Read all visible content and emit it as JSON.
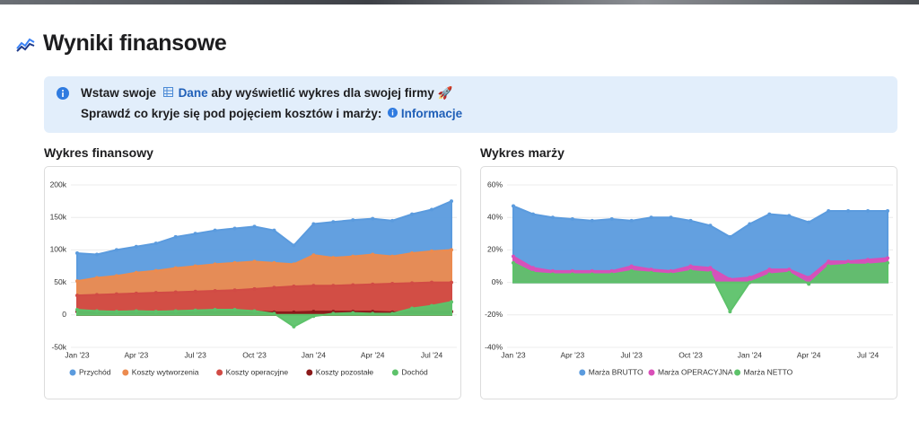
{
  "header": {
    "title": "Wyniki finansowe"
  },
  "banner": {
    "line1": {
      "before": "Wstaw swoje",
      "link": "Dane",
      "after": "aby wyświetlić wykres dla swojej firmy 🚀"
    },
    "line2": {
      "text": "Sprawdź co kryje się pod pojęciem kosztów i marży:",
      "link": "Informacje"
    }
  },
  "chart_data": [
    {
      "type": "area",
      "title": "Wykres finansowy",
      "categories": [
        "Jan '23",
        null,
        null,
        "Apr '23",
        null,
        null,
        "Jul '23",
        null,
        null,
        "Oct '23",
        null,
        null,
        "Jan '24",
        null,
        null,
        "Apr '24",
        null,
        null,
        "Jul '24",
        null
      ],
      "series": [
        {
          "name": "Przychód",
          "color": "#5b9bde",
          "values": [
            95000,
            93000,
            100000,
            105000,
            110000,
            120000,
            125000,
            130000,
            133000,
            136000,
            130000,
            107000,
            140000,
            143000,
            146000,
            148000,
            145000,
            155000,
            162000,
            175000
          ]
        },
        {
          "name": "Koszty wytworzenia",
          "color": "#ec8b4f",
          "values": [
            52000,
            57000,
            60000,
            65000,
            68000,
            72000,
            75000,
            78000,
            80000,
            82000,
            80000,
            78000,
            92000,
            88000,
            90000,
            93000,
            90000,
            95000,
            98000,
            100000
          ]
        },
        {
          "name": "Koszty operacyjne",
          "color": "#d14b45",
          "values": [
            30000,
            31000,
            32000,
            33000,
            34000,
            35000,
            36000,
            37000,
            38000,
            40000,
            42000,
            44000,
            45000,
            45000,
            46000,
            47000,
            48000,
            49000,
            50000,
            50000
          ]
        },
        {
          "name": "Koszty pozostałe",
          "color": "#8b1a1a",
          "values": [
            5000,
            4000,
            4000,
            4000,
            4000,
            5000,
            5000,
            5000,
            5000,
            5000,
            4000,
            4000,
            5000,
            5000,
            5000,
            5000,
            4000,
            5000,
            5000,
            5000
          ]
        },
        {
          "name": "Dochód",
          "color": "#5dc26a",
          "values": [
            8000,
            6000,
            5000,
            6000,
            5000,
            6000,
            7000,
            8000,
            8000,
            6000,
            2000,
            -18000,
            -2000,
            2000,
            3000,
            2000,
            2000,
            10000,
            14000,
            20000
          ]
        }
      ],
      "ylim": [
        -50000,
        200000
      ],
      "yticks": [
        {
          "value": -50000,
          "label": "-50k"
        },
        0,
        {
          "value": 50000,
          "label": "50k"
        },
        {
          "value": 100000,
          "label": "100k"
        },
        {
          "value": 150000,
          "label": "150k"
        },
        {
          "value": 200000,
          "label": "200k"
        }
      ],
      "grid": true,
      "legend": "bottom"
    },
    {
      "type": "area",
      "title": "Wykres marży",
      "categories": [
        "Jan '23",
        null,
        null,
        "Apr '23",
        null,
        null,
        "Jul '23",
        null,
        null,
        "Oct '23",
        null,
        null,
        "Jan '24",
        null,
        null,
        "Apr '24",
        null,
        null,
        "Jul '24",
        null
      ],
      "series": [
        {
          "name": "Marża BRUTTO",
          "color": "#5b9bde",
          "values": [
            47,
            42,
            40,
            39,
            38,
            39,
            38,
            40,
            40,
            38,
            35,
            28,
            36,
            42,
            41,
            37,
            44,
            44,
            44,
            44
          ]
        },
        {
          "name": "Marża OPERACYJNA",
          "color": "#d94fb8",
          "values": [
            16,
            9,
            7,
            7,
            7,
            7,
            10,
            8,
            7,
            10,
            9,
            2,
            3,
            8,
            8,
            3,
            13,
            13,
            14,
            15
          ]
        },
        {
          "name": "Marża NETTO",
          "color": "#5dc26a",
          "values": [
            12,
            6,
            5,
            5,
            5,
            5,
            7,
            6,
            5,
            7,
            6,
            -18,
            0,
            5,
            6,
            -1,
            10,
            11,
            11,
            12
          ]
        }
      ],
      "ylim": [
        -40,
        60
      ],
      "yticks": [
        {
          "value": -40,
          "label": "-40%"
        },
        {
          "value": -20,
          "label": "-20%"
        },
        {
          "value": 0,
          "label": "0%"
        },
        {
          "value": 20,
          "label": "20%"
        },
        {
          "value": 40,
          "label": "40%"
        },
        {
          "value": 60,
          "label": "60%"
        }
      ],
      "grid": true,
      "legend": "bottom"
    }
  ]
}
